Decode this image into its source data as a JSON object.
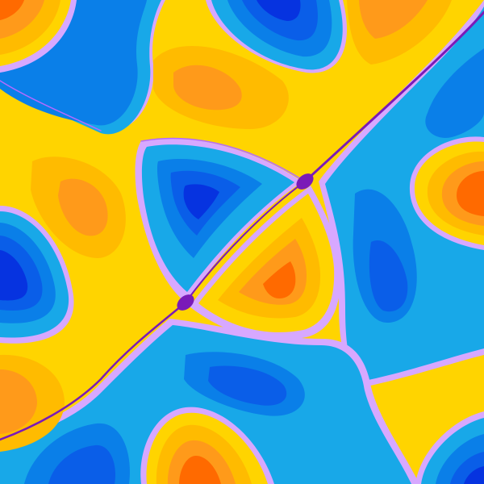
{
  "image": {
    "kind": "contour-field-art",
    "description_visible_text": ""
  },
  "palette": {
    "yellow": "#ffd400",
    "light_orange": "#ffbb00",
    "orange": "#ff9a1a",
    "deep_orange": "#ff6a00",
    "sky": "#18a8e8",
    "mid_blue": "#0a7fe8",
    "blue": "#0a5ee8",
    "deep_blue": "#0633e0",
    "lilac": "#d7a8ff",
    "violet": "#b36bff",
    "purple": "#7a1ab8"
  }
}
